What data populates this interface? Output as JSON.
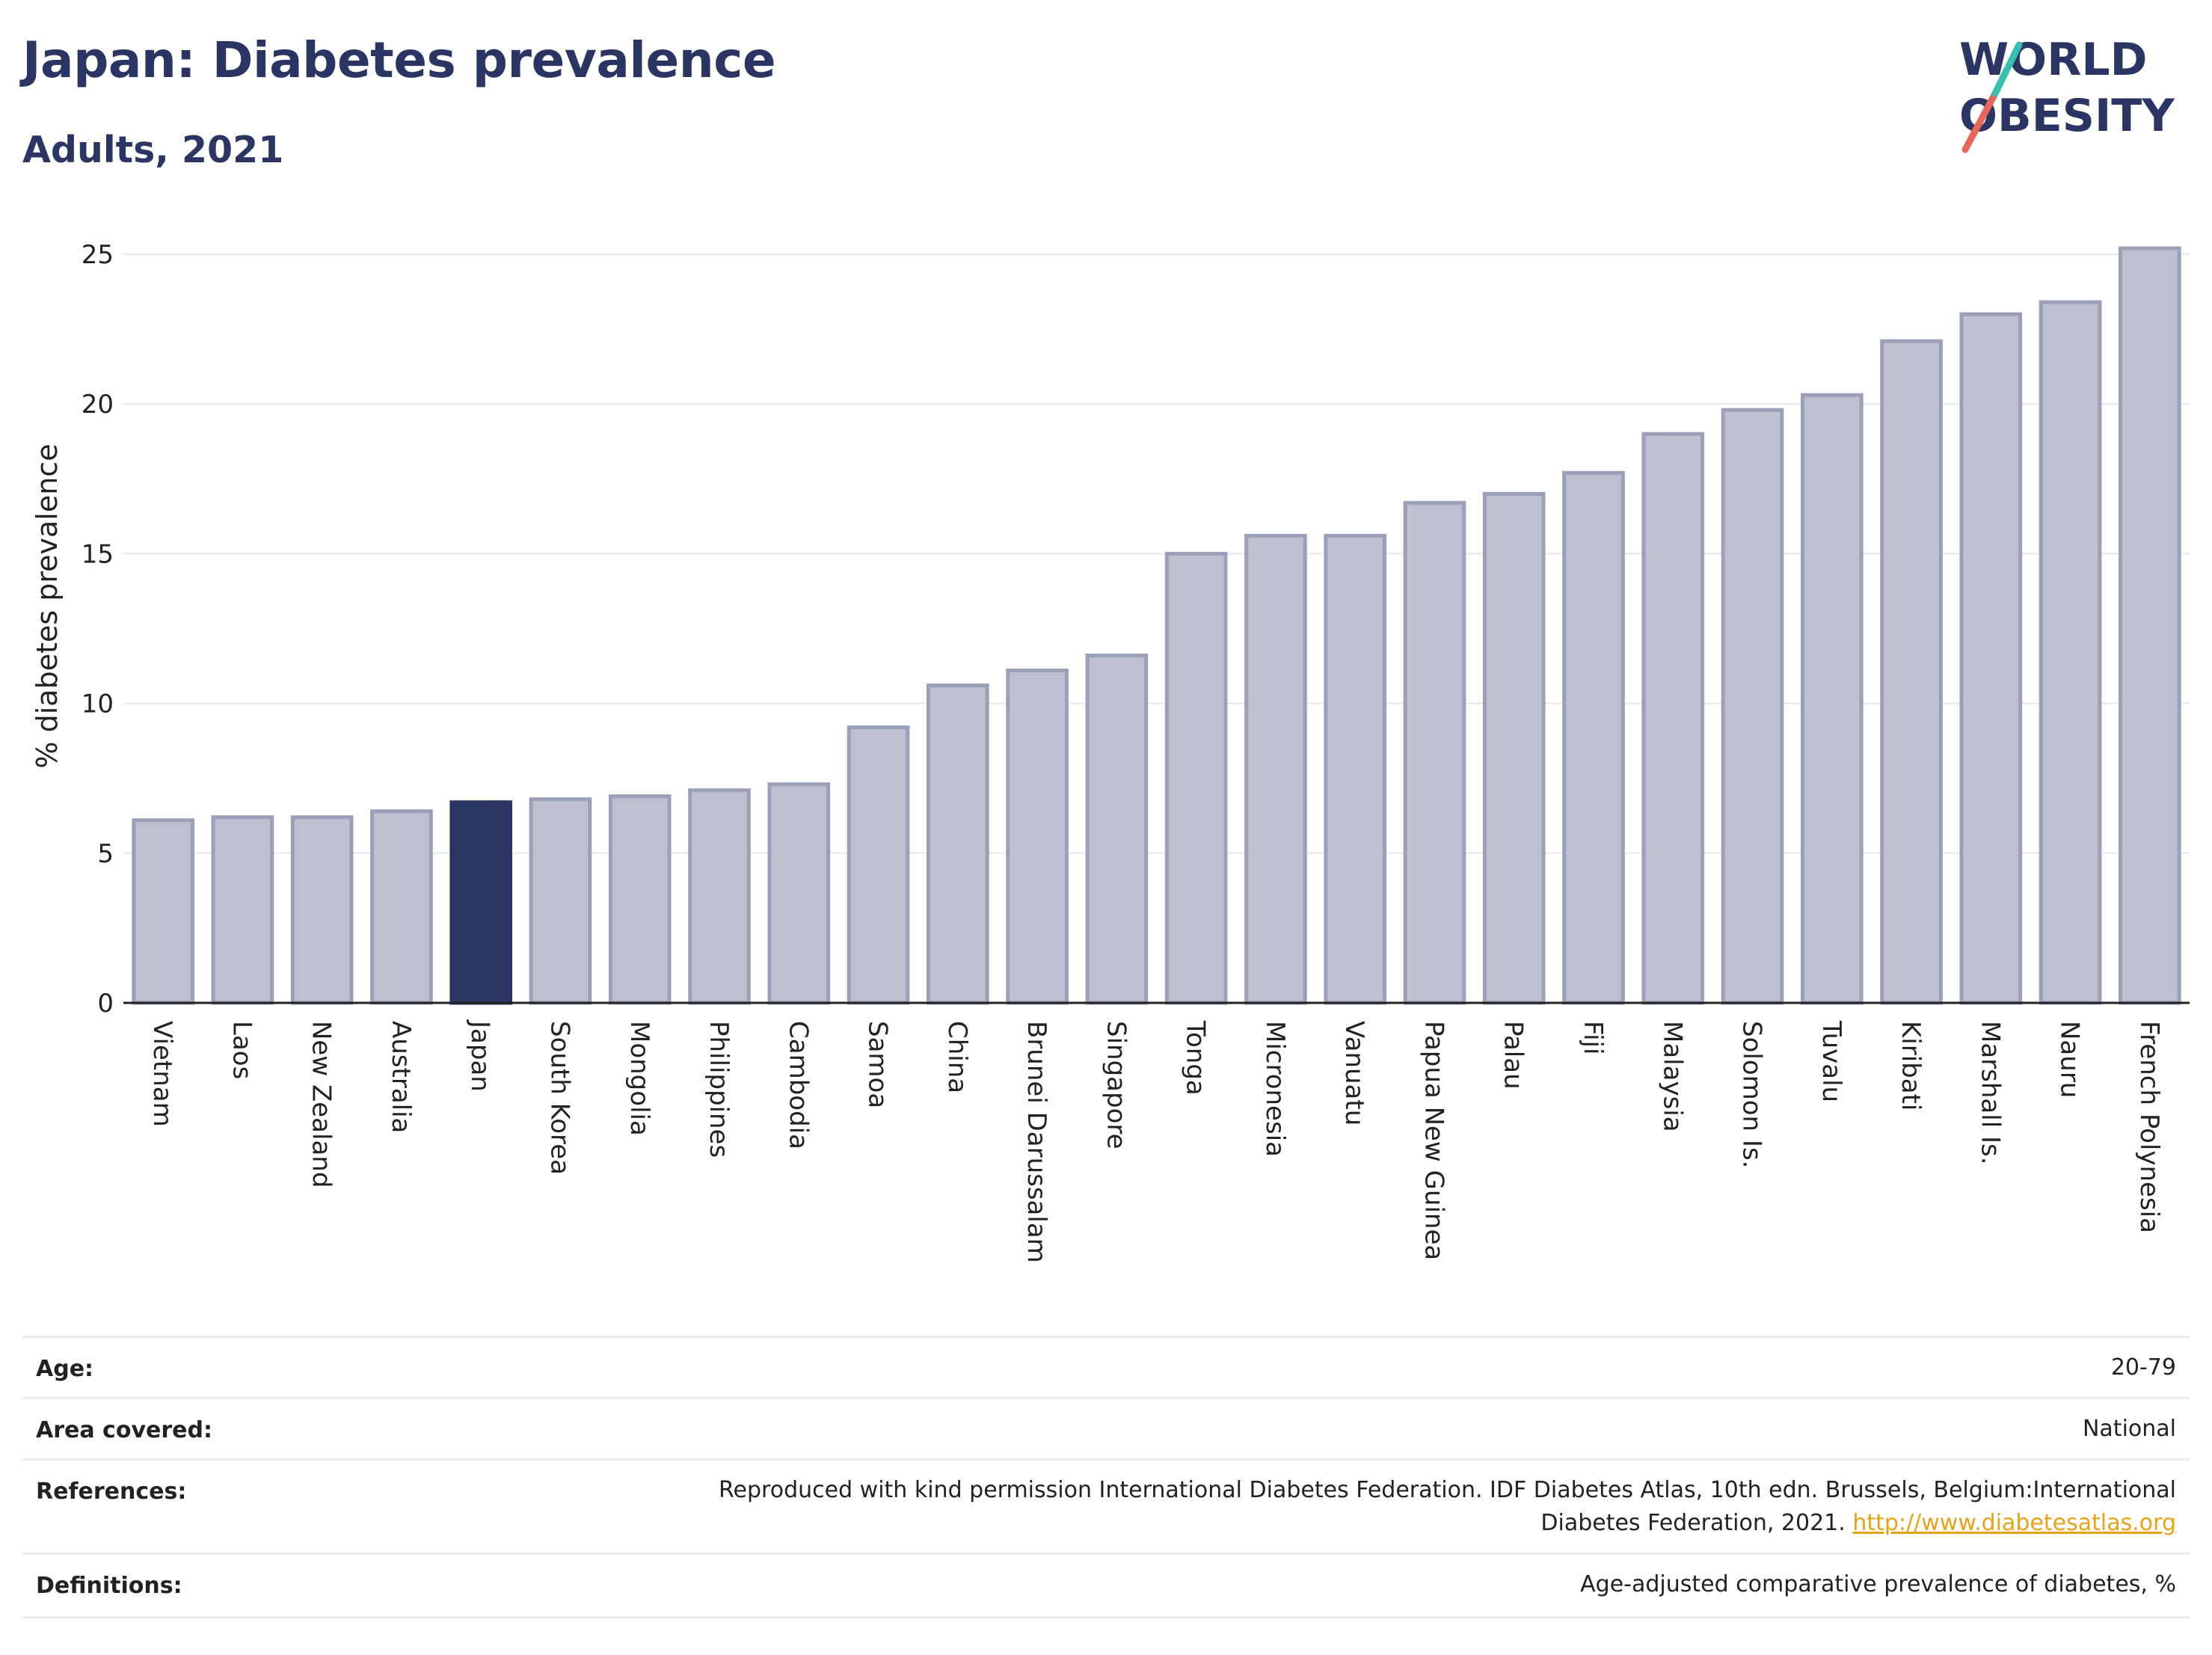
{
  "header": {
    "title": "Japan: Diabetes prevalence",
    "subtitle": "Adults, 2021"
  },
  "logo": {
    "line1": "WORLD",
    "line2": "OBESITY",
    "colors": {
      "text": "#2b3563",
      "slash_red": "#e8675a",
      "slash_teal": "#39bfb0"
    }
  },
  "chart_data": {
    "type": "bar",
    "ylabel": "% diabetes prevalence",
    "xlabel": "",
    "ylim": [
      0,
      26
    ],
    "yticks": [
      0,
      5,
      10,
      15,
      20,
      25
    ],
    "grid": true,
    "highlight": "Japan",
    "colors": {
      "bar": "#bdc1cf",
      "bar_edge": "#9aa0b8",
      "highlight": "#2b3563"
    },
    "categories": [
      "Vietnam",
      "Laos",
      "New Zealand",
      "Australia",
      "Japan",
      "South Korea",
      "Mongolia",
      "Philippines",
      "Cambodia",
      "Samoa",
      "China",
      "Brunei Darussalam",
      "Singapore",
      "Tonga",
      "Micronesia",
      "Vanuatu",
      "Papua New Guinea",
      "Palau",
      "Fiji",
      "Malaysia",
      "Solomon Is.",
      "Tuvalu",
      "Kiribati",
      "Marshall Is.",
      "Nauru",
      "French Polynesia"
    ],
    "values": [
      6.1,
      6.2,
      6.2,
      6.4,
      6.7,
      6.8,
      6.9,
      7.1,
      7.3,
      9.2,
      10.6,
      11.1,
      11.6,
      15.0,
      15.6,
      15.6,
      16.7,
      17.0,
      17.7,
      19.0,
      19.8,
      20.3,
      22.1,
      23.0,
      23.4,
      25.2
    ]
  },
  "metadata": {
    "rows": [
      {
        "key": "Age:",
        "value": "20-79"
      },
      {
        "key": "Area covered:",
        "value": "National"
      },
      {
        "key": "References:",
        "value_line1": "Reproduced with kind permission International Diabetes Federation.  IDF Diabetes Atlas, 10th edn. Brussels, Belgium:International",
        "value_line2": "Diabetes Federation, 2021. ",
        "link": "http://www.diabetesatlas.org"
      },
      {
        "key": "Definitions:",
        "value": "Age-adjusted comparative prevalence of diabetes, %"
      }
    ]
  }
}
